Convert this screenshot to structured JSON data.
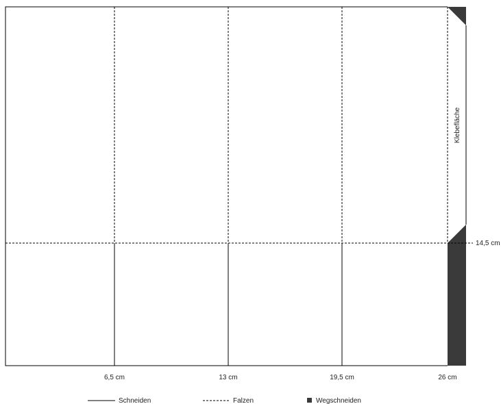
{
  "colors": {
    "line": "#000000",
    "cut_away": "#3a3a3a",
    "text": "#222222"
  },
  "glue_area": {
    "label": "Klebefläche"
  },
  "measurements": {
    "x_marks": [
      "6,5 cm",
      "13 cm",
      "19,5 cm",
      "26 cm"
    ],
    "y_mark": "14,5 cm"
  },
  "legend": {
    "cut": "Schneiden",
    "fold": "Falzen",
    "cut_away": "Wegschneiden"
  }
}
